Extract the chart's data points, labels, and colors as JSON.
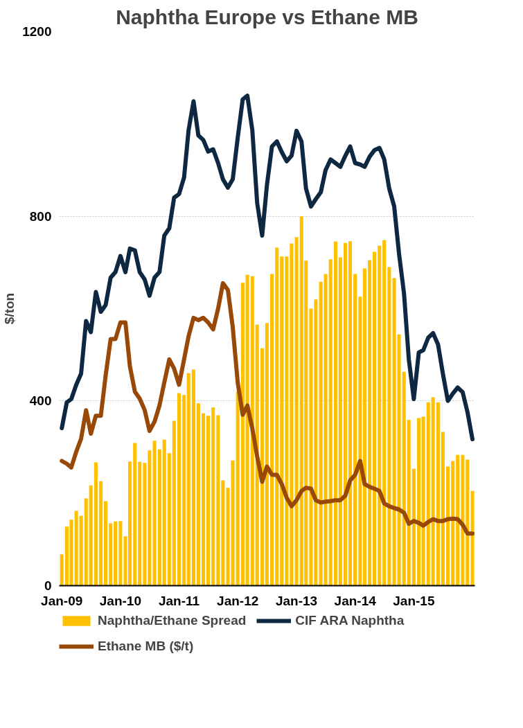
{
  "chart_data": {
    "type": "bar",
    "title": "Naphtha Europe vs Ethane MB",
    "ylabel": "$/ton",
    "x": [
      "2009-01",
      "2009-02",
      "2009-03",
      "2009-04",
      "2009-05",
      "2009-06",
      "2009-07",
      "2009-08",
      "2009-09",
      "2009-10",
      "2009-11",
      "2009-12",
      "2010-01",
      "2010-02",
      "2010-03",
      "2010-04",
      "2010-05",
      "2010-06",
      "2010-07",
      "2010-08",
      "2010-09",
      "2010-10",
      "2010-11",
      "2010-12",
      "2011-01",
      "2011-02",
      "2011-03",
      "2011-04",
      "2011-05",
      "2011-06",
      "2011-07",
      "2011-08",
      "2011-09",
      "2011-10",
      "2011-11",
      "2011-12",
      "2012-01",
      "2012-02",
      "2012-03",
      "2012-04",
      "2012-05",
      "2012-06",
      "2012-07",
      "2012-08",
      "2012-09",
      "2012-10",
      "2012-11",
      "2012-12",
      "2013-01",
      "2013-02",
      "2013-03",
      "2013-04",
      "2013-05",
      "2013-06",
      "2013-07",
      "2013-08",
      "2013-09",
      "2013-10",
      "2013-11",
      "2013-12",
      "2014-01",
      "2014-02",
      "2014-03",
      "2014-04",
      "2014-05",
      "2014-06",
      "2014-07",
      "2014-08",
      "2014-09",
      "2014-10",
      "2014-11",
      "2014-12",
      "2015-01",
      "2015-02",
      "2015-03",
      "2015-04",
      "2015-05",
      "2015-06",
      "2015-07",
      "2015-08",
      "2015-09",
      "2015-10",
      "2015-11",
      "2015-12",
      "2016-01"
    ],
    "series": [
      {
        "name": "Naphtha/Ethane Spread",
        "color": "#ffc000",
        "values": [
          68,
          128,
          143,
          162,
          151,
          189,
          217,
          267,
          226,
          183,
          135,
          139,
          140,
          107,
          269,
          309,
          268,
          266,
          293,
          314,
          295,
          316,
          287,
          357,
          417,
          413,
          460,
          468,
          395,
          373,
          368,
          386,
          369,
          228,
          212,
          271,
          420,
          656,
          673,
          670,
          565,
          514,
          569,
          675,
          732,
          713,
          713,
          741,
          755,
          800,
          704,
          600,
          620,
          658,
          675,
          707,
          745,
          711,
          742,
          746,
          675,
          626,
          687,
          705,
          723,
          736,
          748,
          690,
          666,
          544,
          463,
          359,
          253,
          363,
          366,
          397,
          408,
          397,
          333,
          258,
          270,
          283,
          283,
          273,
          205
        ]
      },
      {
        "name": "CIF ARA Naphtha",
        "type": "line",
        "color": "#0e2841",
        "values": [
          341,
          397,
          404,
          435,
          459,
          573,
          549,
          636,
          593,
          608,
          667,
          679,
          714,
          679,
          730,
          726,
          679,
          663,
          628,
          667,
          679,
          758,
          774,
          840,
          848,
          884,
          986,
          1049,
          975,
          965,
          940,
          945,
          915,
          880,
          862,
          880,
          970,
          1053,
          1061,
          986,
          829,
          758,
          868,
          951,
          962,
          939,
          919,
          931,
          985,
          962,
          860,
          821,
          837,
          852,
          900,
          923,
          915,
          907,
          931,
          951,
          915,
          912,
          907,
          929,
          943,
          948,
          923,
          860,
          821,
          719,
          633,
          490,
          404,
          505,
          510,
          537,
          547,
          522,
          459,
          400,
          416,
          429,
          419,
          376,
          317
        ]
      },
      {
        "name": "Ethane MB ($/t)",
        "type": "line",
        "color": "#984807",
        "values": [
          270,
          264,
          256,
          290,
          318,
          380,
          329,
          368,
          368,
          455,
          534,
          534,
          570,
          570,
          475,
          420,
          405,
          380,
          335,
          355,
          390,
          440,
          490,
          470,
          435,
          490,
          540,
          580,
          575,
          580,
          570,
          555,
          600,
          655,
          640,
          560,
          440,
          370,
          390,
          340,
          280,
          225,
          258,
          240,
          240,
          220,
          190,
          172,
          185,
          205,
          212,
          210,
          185,
          180,
          182,
          183,
          185,
          185,
          195,
          228,
          240,
          270,
          220,
          214,
          210,
          205,
          178,
          172,
          168,
          165,
          158,
          134,
          140,
          136,
          130,
          138,
          144,
          140,
          140,
          144,
          145,
          144,
          132,
          113,
          113
        ]
      }
    ],
    "ylim": [
      0,
      1200
    ],
    "yticks": [
      0,
      400,
      800,
      1200
    ],
    "xticks": [
      {
        "value": "2009-01",
        "label": "Jan-09"
      },
      {
        "value": "2010-01",
        "label": "Jan-10"
      },
      {
        "value": "2011-01",
        "label": "Jan-11"
      },
      {
        "value": "2012-01",
        "label": "Jan-12"
      },
      {
        "value": "2013-01",
        "label": "Jan-13"
      },
      {
        "value": "2014-01",
        "label": "Jan-14"
      },
      {
        "value": "2015-01",
        "label": "Jan-15"
      }
    ],
    "xlim": [
      "2008-12-16",
      "2016-01-16"
    ],
    "grid": "y",
    "legend": "bottom",
    "line_style": "solid"
  }
}
